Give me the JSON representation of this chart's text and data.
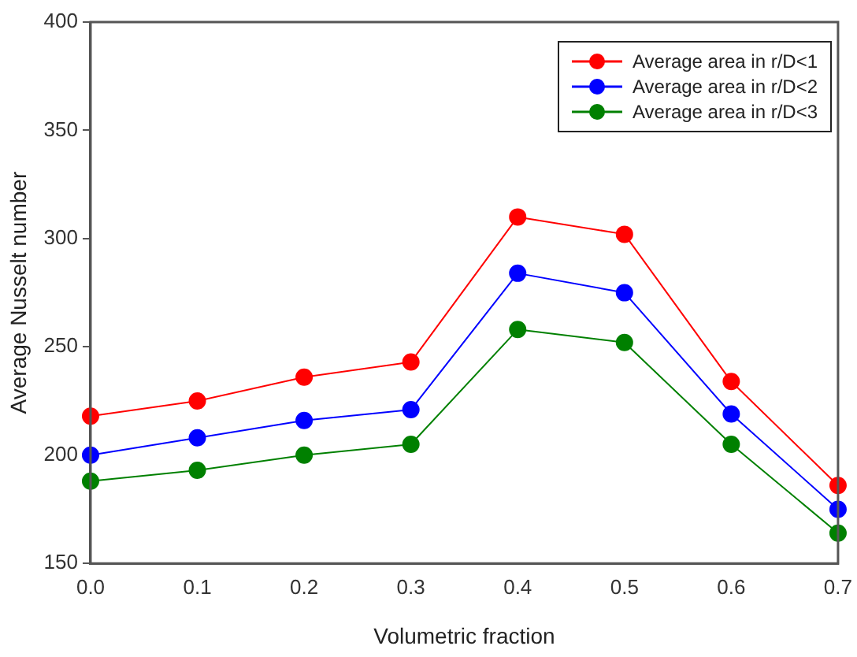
{
  "chart_data": {
    "type": "line",
    "xlabel": "Volumetric fraction",
    "ylabel": "Average Nusselt number",
    "x": [
      0,
      0.1,
      0.2,
      0.3,
      0.4,
      0.5,
      0.6,
      0.7
    ],
    "series": [
      {
        "name": "Average area in r/D<1",
        "color": "#ff0000",
        "values": [
          218,
          225,
          236,
          243,
          310,
          302,
          234,
          186
        ]
      },
      {
        "name": "Average area in r/D<2",
        "color": "#0000ff",
        "values": [
          200,
          208,
          216,
          221,
          284,
          275,
          219,
          175
        ]
      },
      {
        "name": "Average area in r/D<3",
        "color": "#008000",
        "values": [
          188,
          193,
          200,
          205,
          258,
          252,
          205,
          164
        ]
      }
    ],
    "xlim": [
      0,
      0.7
    ],
    "xticks": [
      {
        "value": 0,
        "label": "0.0"
      },
      0.1,
      0.2,
      0.3,
      0.4,
      0.5,
      0.6,
      0.7
    ],
    "ylim": [
      150,
      400
    ],
    "yticks": [
      150,
      200,
      250,
      300,
      350,
      400
    ],
    "grid": false,
    "legend": "top right",
    "marker": "circle",
    "line_style": "solid"
  }
}
